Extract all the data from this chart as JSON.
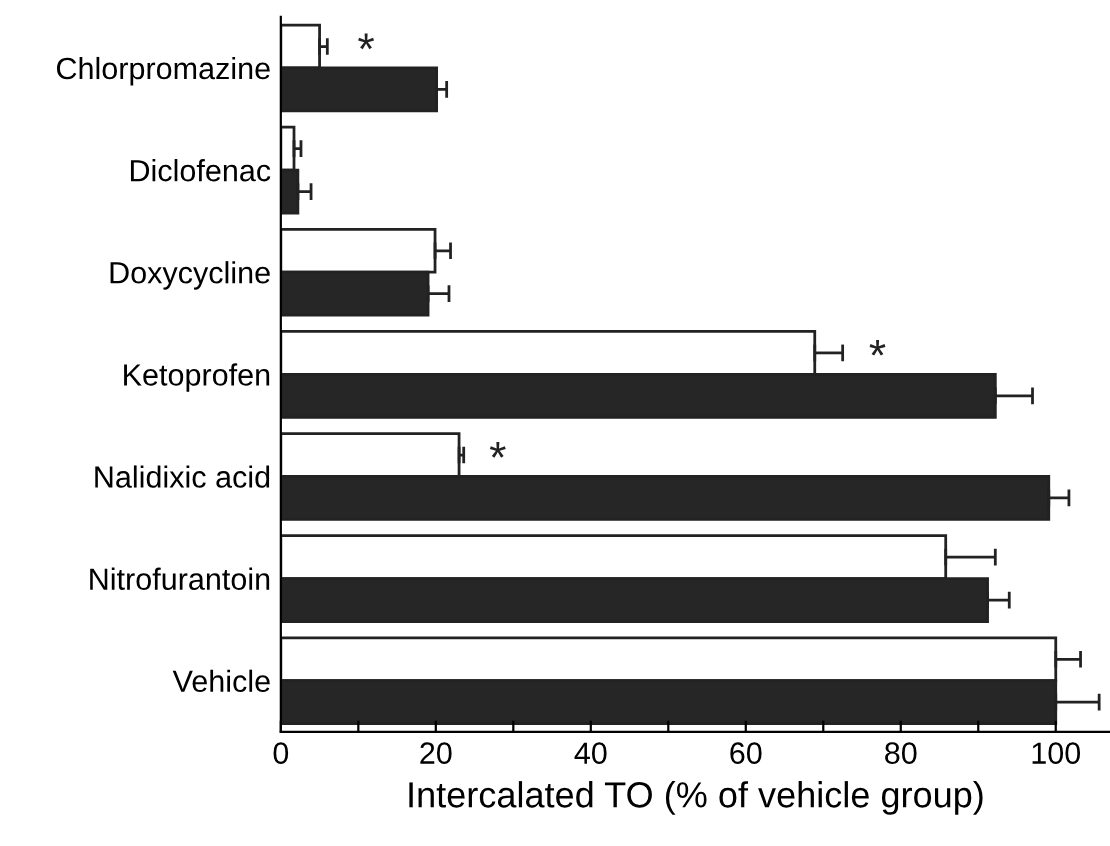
{
  "chart_data": {
    "type": "bar",
    "orientation": "horizontal",
    "xlabel": "Intercalated TO (% of vehicle group)",
    "categories": [
      "Chlorpromazine",
      "Diclofenac",
      "Doxycycline",
      "Ketoprofen",
      "Nalidixic acid",
      "Nitrofurantoin",
      "Vehicle"
    ],
    "series": [
      {
        "color": "#ffffff",
        "values": [
          5.0,
          1.7,
          19.9,
          68.9,
          23.0,
          85.8,
          100
        ],
        "errors": [
          1.0,
          0.9,
          2.0,
          3.6,
          0.6,
          6.4,
          3.2
        ]
      },
      {
        "color": "#262626",
        "values": [
          20.1,
          2.2,
          19.0,
          92.2,
          99.1,
          91.2,
          100
        ],
        "errors": [
          1.3,
          1.7,
          2.7,
          4.8,
          2.6,
          2.8,
          5.6
        ]
      }
    ],
    "xlim": [
      0,
      107
    ],
    "xticks": [
      0,
      {
        "value": 10,
        "label": null
      },
      20,
      {
        "value": 30,
        "label": null
      },
      40,
      {
        "value": 50,
        "label": null
      },
      60,
      {
        "value": 70,
        "label": null
      },
      80,
      {
        "value": 90,
        "label": null
      },
      100
    ],
    "annotations": [
      {
        "text": "*",
        "x": 11,
        "y": "Chlorpromazine"
      },
      {
        "text": "*",
        "x": 77,
        "y": "Ketoprofen"
      },
      {
        "text": "*",
        "x": 28,
        "y": "Nalidixic acid"
      }
    ],
    "grid": false,
    "legend": false
  }
}
